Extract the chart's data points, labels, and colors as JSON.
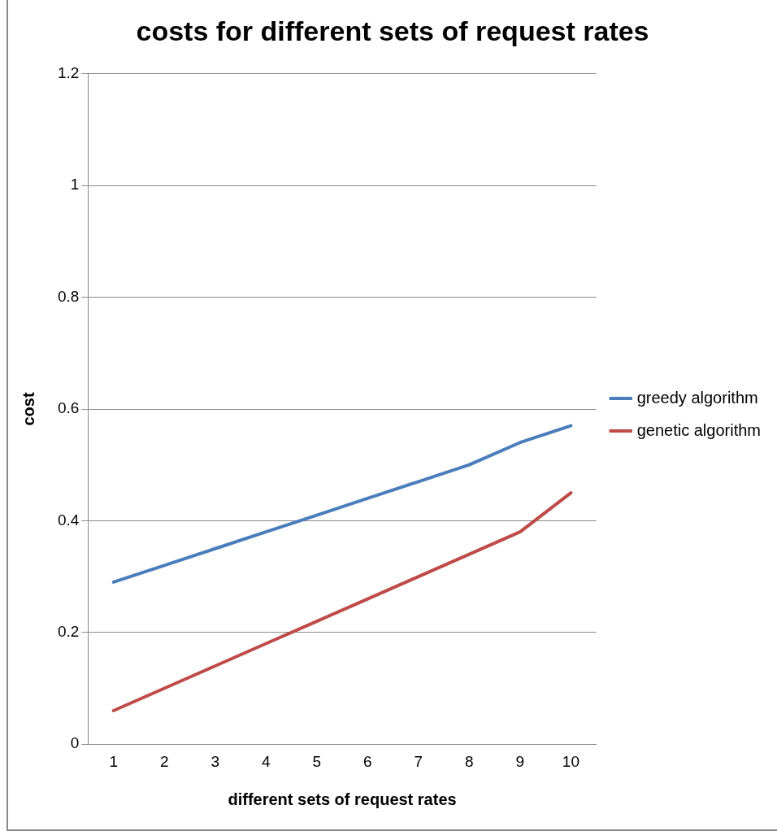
{
  "chart_data": {
    "type": "line",
    "title": "costs for different sets of request rates",
    "xlabel": "different sets of request rates",
    "ylabel": "cost",
    "categories": [
      "1",
      "2",
      "3",
      "4",
      "5",
      "6",
      "7",
      "8",
      "9",
      "10"
    ],
    "series": [
      {
        "name": "greedy algorithm",
        "color": "#4a7ebb",
        "values": [
          0.29,
          0.32,
          0.35,
          0.38,
          0.41,
          0.44,
          0.47,
          0.5,
          0.54,
          0.57
        ]
      },
      {
        "name": "genetic algorithm",
        "color": "#be4b48",
        "values": [
          0.06,
          0.1,
          0.14,
          0.18,
          0.22,
          0.26,
          0.3,
          0.34,
          0.38,
          0.45
        ]
      }
    ],
    "ylim": [
      0,
      1.2
    ],
    "yticks": [
      0,
      0.2,
      0.4,
      0.6,
      0.8,
      1,
      1.2
    ],
    "grid": "y",
    "legend": "right",
    "marker": "none",
    "line_style": "solid"
  }
}
